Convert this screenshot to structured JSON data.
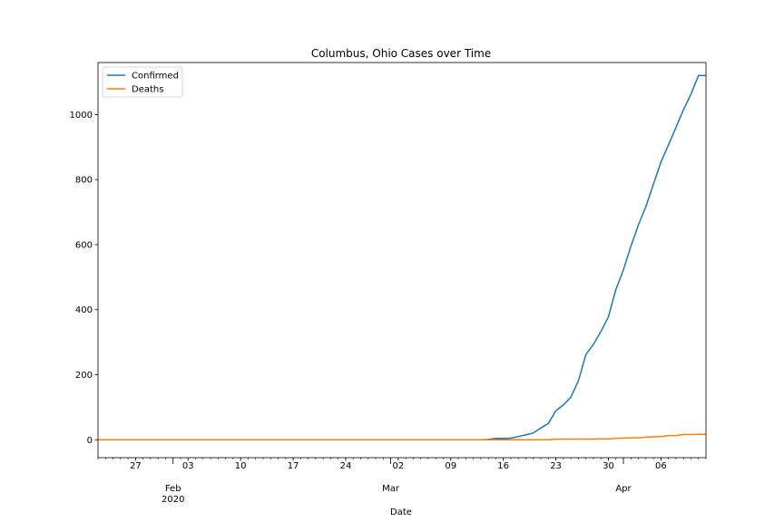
{
  "chart_data": {
    "type": "line",
    "title": "Columbus, Ohio Cases over Time",
    "xlabel": "Date",
    "ylabel": "",
    "xlim": [
      "2020-01-22",
      "2020-04-12"
    ],
    "ylim": [
      -55,
      1160
    ],
    "grid": false,
    "legend_position": "top-left",
    "y_ticks": [
      0,
      200,
      400,
      600,
      800,
      1000
    ],
    "x_minor_ticks": [
      {
        "date": "2020-01-27",
        "label": "27"
      },
      {
        "date": "2020-02-03",
        "label": "03"
      },
      {
        "date": "2020-02-10",
        "label": "10"
      },
      {
        "date": "2020-02-17",
        "label": "17"
      },
      {
        "date": "2020-02-24",
        "label": "24"
      },
      {
        "date": "2020-03-02",
        "label": "02"
      },
      {
        "date": "2020-03-09",
        "label": "09"
      },
      {
        "date": "2020-03-16",
        "label": "16"
      },
      {
        "date": "2020-03-23",
        "label": "23"
      },
      {
        "date": "2020-03-30",
        "label": "30"
      },
      {
        "date": "2020-04-06",
        "label": "06"
      }
    ],
    "x_major_ticks": [
      {
        "date": "2020-02-01",
        "label": "Feb",
        "sublabel": "2020"
      },
      {
        "date": "2020-03-01",
        "label": "Mar",
        "sublabel": ""
      },
      {
        "date": "2020-04-01",
        "label": "Apr",
        "sublabel": ""
      }
    ],
    "series": [
      {
        "name": "Confirmed",
        "color": "#1f77b4",
        "x": [
          "2020-01-22",
          "2020-03-13",
          "2020-03-14",
          "2020-03-15",
          "2020-03-16",
          "2020-03-17",
          "2020-03-18",
          "2020-03-19",
          "2020-03-20",
          "2020-03-21",
          "2020-03-22",
          "2020-03-23",
          "2020-03-24",
          "2020-03-25",
          "2020-03-26",
          "2020-03-27",
          "2020-03-28",
          "2020-03-29",
          "2020-03-30",
          "2020-03-31",
          "2020-04-01",
          "2020-04-02",
          "2020-04-03",
          "2020-04-04",
          "2020-04-05",
          "2020-04-06",
          "2020-04-07",
          "2020-04-08",
          "2020-04-09",
          "2020-04-10",
          "2020-04-11",
          "2020-04-12"
        ],
        "y": [
          0,
          0,
          1,
          4,
          4,
          5,
          10,
          15,
          21,
          36,
          50,
          89,
          107,
          131,
          181,
          262,
          293,
          333,
          378,
          462,
          522,
          595,
          661,
          717,
          786,
          854,
          906,
          960,
          1015,
          1063,
          1120,
          1120
        ]
      },
      {
        "name": "Deaths",
        "color": "#ff7f0e",
        "x": [
          "2020-01-22",
          "2020-03-22",
          "2020-03-23",
          "2020-03-28",
          "2020-03-29",
          "2020-03-30",
          "2020-03-31",
          "2020-04-01",
          "2020-04-02",
          "2020-04-03",
          "2020-04-04",
          "2020-04-05",
          "2020-04-06",
          "2020-04-07",
          "2020-04-08",
          "2020-04-09",
          "2020-04-10",
          "2020-04-11",
          "2020-04-12"
        ],
        "y": [
          0,
          0,
          2,
          2,
          3,
          3,
          4,
          5,
          6,
          6,
          8,
          9,
          10,
          13,
          13,
          16,
          16,
          17,
          17
        ]
      }
    ]
  }
}
